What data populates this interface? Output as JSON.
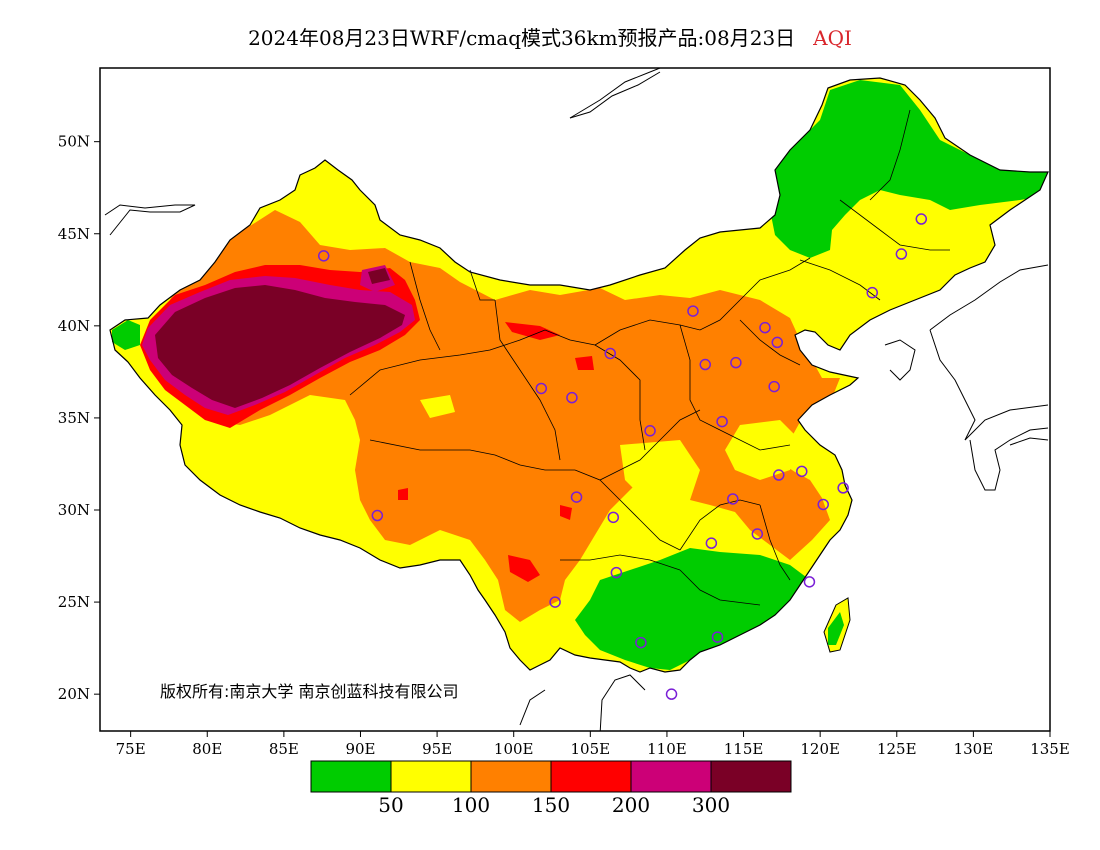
{
  "title": {
    "main": "2024年08月23日WRF/cmaq模式36km预报产品:08月23日",
    "variable": "AQI",
    "variable_color": "#d9262c"
  },
  "map": {
    "lon_range": [
      73,
      135
    ],
    "lat_range": [
      18,
      54
    ],
    "lon_ticks": [
      "75E",
      "80E",
      "85E",
      "90E",
      "95E",
      "100E",
      "105E",
      "110E",
      "115E",
      "120E",
      "125E",
      "130E",
      "135E"
    ],
    "lat_ticks": [
      "20N",
      "25N",
      "30N",
      "35N",
      "40N",
      "45N",
      "50N"
    ],
    "copyright": "版权所有:南京大学 南京创蓝科技有限公司"
  },
  "legend": {
    "colors": [
      "#00cc00",
      "#ffff00",
      "#ff8000",
      "#ff0000",
      "#cc0077",
      "#7a0026"
    ],
    "labels": [
      "50",
      "100",
      "150",
      "200",
      "300"
    ]
  },
  "regions": [
    {
      "name": "background-yellow",
      "level": 2,
      "color": "#ffff00"
    },
    {
      "name": "northeast-green",
      "level": 1,
      "color": "#00cc00"
    },
    {
      "name": "south-green",
      "level": 1,
      "color": "#00cc00"
    },
    {
      "name": "central-orange",
      "level": 3,
      "color": "#ff8000"
    },
    {
      "name": "xinjiang-red",
      "level": 4,
      "color": "#ff0000"
    },
    {
      "name": "taklamakan-magenta",
      "level": 5,
      "color": "#cc0077"
    },
    {
      "name": "taklamakan-maroon",
      "level": 6,
      "color": "#7a0026"
    }
  ],
  "city_markers": [
    {
      "lon": 87.6,
      "lat": 43.8
    },
    {
      "lon": 91.1,
      "lat": 29.7
    },
    {
      "lon": 101.8,
      "lat": 36.6
    },
    {
      "lon": 103.8,
      "lat": 36.1
    },
    {
      "lon": 106.3,
      "lat": 38.5
    },
    {
      "lon": 111.7,
      "lat": 40.8
    },
    {
      "lon": 112.5,
      "lat": 37.9
    },
    {
      "lon": 114.5,
      "lat": 38.0
    },
    {
      "lon": 116.4,
      "lat": 39.9
    },
    {
      "lon": 117.2,
      "lat": 39.1
    },
    {
      "lon": 117.0,
      "lat": 36.7
    },
    {
      "lon": 113.6,
      "lat": 34.8
    },
    {
      "lon": 108.9,
      "lat": 34.3
    },
    {
      "lon": 104.1,
      "lat": 30.7
    },
    {
      "lon": 106.5,
      "lat": 29.6
    },
    {
      "lon": 114.3,
      "lat": 30.6
    },
    {
      "lon": 117.3,
      "lat": 31.9
    },
    {
      "lon": 118.8,
      "lat": 32.1
    },
    {
      "lon": 121.5,
      "lat": 31.2
    },
    {
      "lon": 120.2,
      "lat": 30.3
    },
    {
      "lon": 115.9,
      "lat": 28.7
    },
    {
      "lon": 112.9,
      "lat": 28.2
    },
    {
      "lon": 106.7,
      "lat": 26.6
    },
    {
      "lon": 102.7,
      "lat": 25.0
    },
    {
      "lon": 108.3,
      "lat": 22.8
    },
    {
      "lon": 113.3,
      "lat": 23.1
    },
    {
      "lon": 119.3,
      "lat": 26.1
    },
    {
      "lon": 110.3,
      "lat": 20.0
    },
    {
      "lon": 123.4,
      "lat": 41.8
    },
    {
      "lon": 125.3,
      "lat": 43.9
    },
    {
      "lon": 126.6,
      "lat": 45.8
    }
  ]
}
